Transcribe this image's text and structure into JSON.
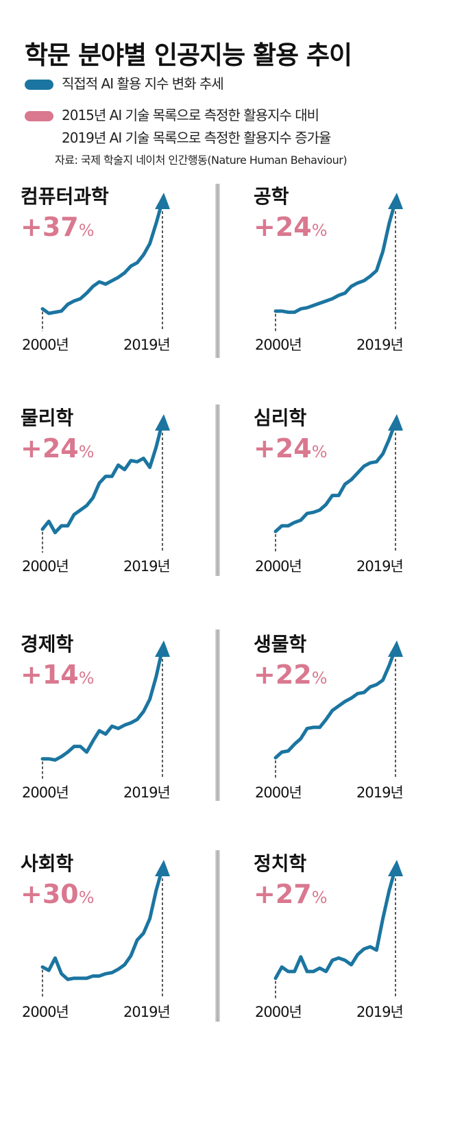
{
  "colors": {
    "line": "#1b75a0",
    "pct": "#d9788f"
  },
  "chart_data": {
    "type": "line",
    "title": "학문 분야별 인공지능 활용 추이",
    "legend": [
      "직접적 AI 활용 지수 변화 추세",
      "2015년 AI 기술 목록으로 측정한 활용지수 대비",
      "2019년 AI 기술 목록으로 측정한 활용지수 증가율"
    ],
    "source": "자료: 국제 학술지 네이처 인간행동(Nature Human Behaviour)",
    "x_start_label": "2000년",
    "x_end_label": "2019년",
    "x": [
      2000,
      2001,
      2002,
      2003,
      2004,
      2005,
      2006,
      2007,
      2008,
      2009,
      2010,
      2011,
      2012,
      2013,
      2014,
      2015,
      2016,
      2017,
      2018,
      2019
    ],
    "series": [
      {
        "name": "컴퓨터과학",
        "pct": "+37",
        "values": [
          4,
          0,
          1,
          2,
          8,
          11,
          13,
          18,
          24,
          28,
          26,
          29,
          32,
          36,
          42,
          45,
          52,
          62,
          80,
          100
        ]
      },
      {
        "name": "공학",
        "pct": "+24",
        "values": [
          2,
          2,
          1,
          1,
          4,
          5,
          7,
          9,
          11,
          13,
          16,
          18,
          24,
          27,
          29,
          33,
          38,
          55,
          80,
          100
        ]
      },
      {
        "name": "물리학",
        "pct": "+24",
        "values": [
          5,
          12,
          2,
          8,
          8,
          18,
          22,
          26,
          33,
          46,
          52,
          52,
          62,
          58,
          66,
          65,
          68,
          60,
          78,
          100
        ]
      },
      {
        "name": "심리학",
        "pct": "+24",
        "values": [
          3,
          8,
          8,
          11,
          13,
          19,
          20,
          22,
          27,
          35,
          35,
          45,
          49,
          55,
          61,
          64,
          65,
          72,
          85,
          100
        ]
      },
      {
        "name": "경제학",
        "pct": "+14",
        "values": [
          2,
          2,
          1,
          4,
          8,
          13,
          13,
          8,
          18,
          27,
          24,
          31,
          29,
          32,
          34,
          37,
          44,
          55,
          75,
          100
        ]
      },
      {
        "name": "생물학",
        "pct": "+22",
        "values": [
          3,
          8,
          9,
          15,
          20,
          29,
          30,
          30,
          37,
          45,
          49,
          53,
          56,
          60,
          61,
          66,
          68,
          72,
          85,
          100
        ]
      },
      {
        "name": "사회학",
        "pct": "+30",
        "values": [
          12,
          9,
          20,
          6,
          1,
          2,
          2,
          2,
          4,
          4,
          6,
          7,
          10,
          14,
          22,
          36,
          42,
          55,
          80,
          100
        ]
      },
      {
        "name": "정치학",
        "pct": "+27",
        "values": [
          2,
          12,
          8,
          8,
          21,
          8,
          8,
          11,
          8,
          18,
          20,
          18,
          14,
          23,
          28,
          30,
          27,
          55,
          80,
          100
        ]
      }
    ],
    "pct_unit": "%",
    "ylabel": "",
    "ylim": [
      0,
      100
    ]
  }
}
